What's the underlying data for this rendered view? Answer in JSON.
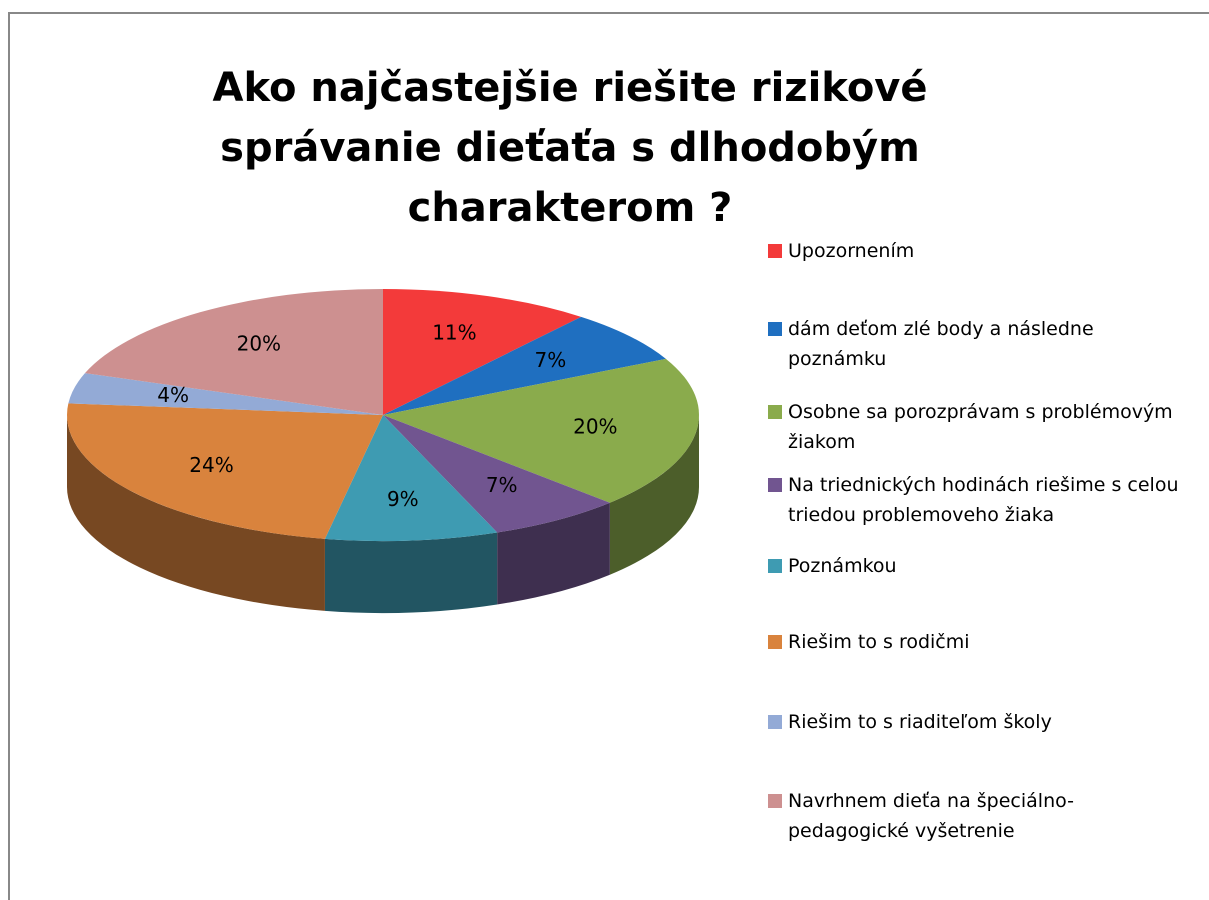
{
  "chart_data": {
    "type": "pie",
    "title": "Ako najčastejšie riešite rizikové správanie dieťaťa s dlhodobým charakterom ?",
    "categories": [
      "Upozornením",
      "dám deťom zlé body a následne poznámku",
      "Osobne sa porozprávam s problémovým žiakom",
      "Na triednických hodinách riešime s celou triedou problemoveho žiaka",
      "Poznámkou",
      "Riešim to s rodičmi",
      "Riešim to s riaditeľom školy",
      "Navrhnem dieťa na špeciálno-pedagogické vyšetrenie"
    ],
    "values": [
      11,
      7,
      20,
      7,
      9,
      24,
      4,
      20
    ],
    "value_labels": [
      "11%",
      "7%",
      "20%",
      "7%",
      "9%",
      "24%",
      "4%",
      "20%"
    ],
    "colors": [
      "#f33a3a",
      "#1f6fc0",
      "#8aab4c",
      "#715590",
      "#3e9bb2",
      "#d9833d",
      "#93aad6",
      "#cd9090"
    ],
    "legend": "right"
  }
}
